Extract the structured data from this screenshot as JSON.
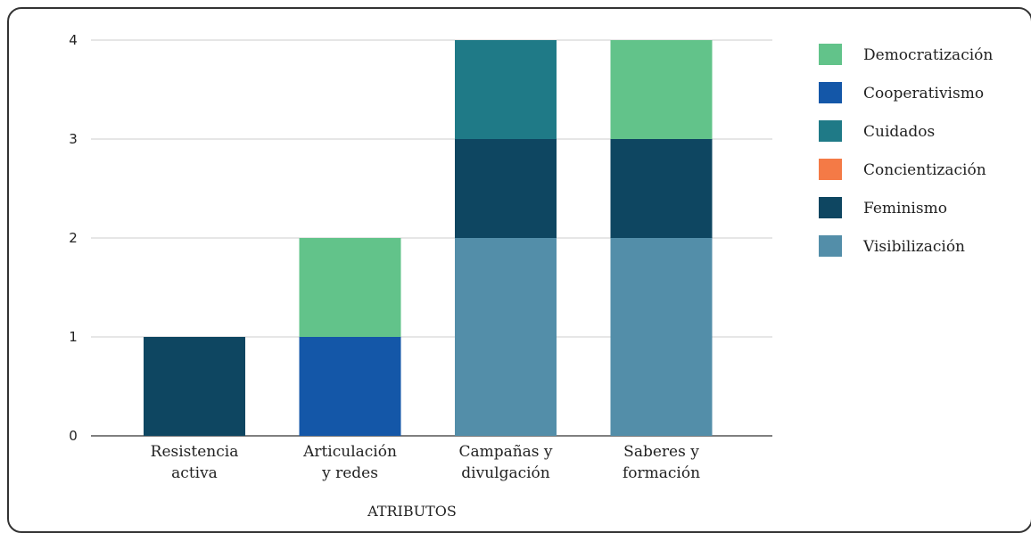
{
  "chart_data": {
    "type": "bar",
    "stacked": true,
    "xlabel": "ATRIBUTOS",
    "ylabel": "",
    "ylim": [
      0,
      4
    ],
    "yticks": [
      0,
      1,
      2,
      3,
      4
    ],
    "grid": true,
    "legend_position": "right",
    "categories": [
      [
        "Resistencia",
        "activa"
      ],
      [
        "Articulación",
        "y redes"
      ],
      [
        "Campañas y",
        "divulgación"
      ],
      [
        "Saberes y",
        "formación"
      ]
    ],
    "series": [
      {
        "name": "Democratización",
        "color": "#62c38a",
        "values": [
          0,
          1,
          0,
          1
        ]
      },
      {
        "name": "Cooperativismo",
        "color": "#1457a8",
        "values": [
          0,
          1,
          0,
          0
        ]
      },
      {
        "name": "Cuidados",
        "color": "#1f7a87",
        "values": [
          0,
          0,
          1,
          0
        ]
      },
      {
        "name": "Concientización",
        "color": "#f47a46",
        "values": [
          0,
          0,
          0,
          0
        ]
      },
      {
        "name": "Feminismo",
        "color": "#0e4661",
        "values": [
          1,
          0,
          1,
          1
        ]
      },
      {
        "name": "Visibilización",
        "color": "#538ea9",
        "values": [
          0,
          0,
          2,
          2
        ]
      }
    ],
    "stack_order_bottom_to_top": [
      "Visibilización",
      "Feminismo",
      "Concientización",
      "Cuidados",
      "Cooperativismo",
      "Democratización"
    ]
  }
}
